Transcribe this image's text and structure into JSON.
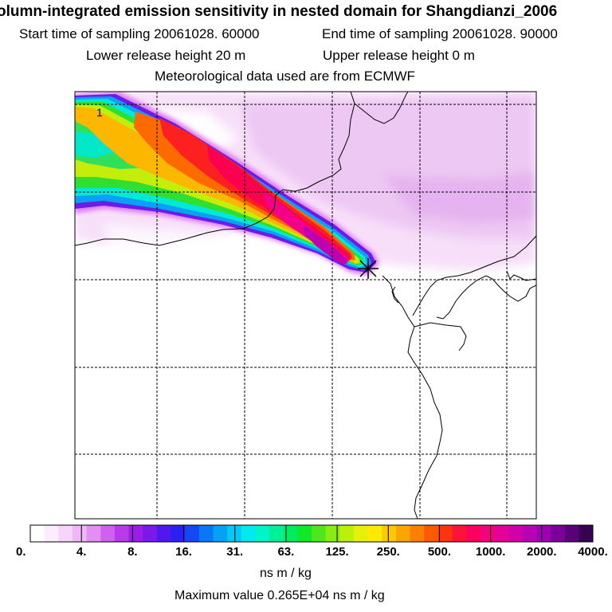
{
  "title": {
    "main": "olumn-integrated emission sensitivity in nested domain for Shangdianzi_2006",
    "start": "Start time of sampling 20061028. 60000",
    "end": "End time of sampling 20061028. 90000",
    "lower": "Lower release height   20 m",
    "upper": "Upper release height    0 m",
    "met": "Meteorological data used are from ECMWF"
  },
  "map": {
    "plot_label": "1",
    "receptor_marker": "receptor-cross-icon"
  },
  "colorbar": {
    "tick_labels": [
      "0.",
      "4.",
      "8.",
      "16.",
      "31.",
      "63.",
      "125.",
      "250.",
      "500.",
      "1000.",
      "2000.",
      "4000."
    ],
    "colors": [
      "#ffffff",
      "#fcecfd",
      "#f7d4fb",
      "#f0b6f8",
      "#e38ef3",
      "#d060ef",
      "#b83aea",
      "#9c1ee6",
      "#7a19e8",
      "#5018ec",
      "#2c20f0",
      "#1448f2",
      "#0a78f4",
      "#06a0f6",
      "#04c8f6",
      "#00eaf0",
      "#00f4c8",
      "#00f09a",
      "#00ec60",
      "#10e828",
      "#4ce81c",
      "#88ec14",
      "#bcf00c",
      "#e6f00a",
      "#fcea00",
      "#fcc800",
      "#fca400",
      "#fc8000",
      "#fc5a00",
      "#fc3410",
      "#fc1438",
      "#fc0060",
      "#f4007e",
      "#e40096",
      "#d000a8",
      "#b800b4",
      "#9c00b0",
      "#7c0098",
      "#5a0078",
      "#380050"
    ],
    "units": "ns m / kg"
  },
  "max_line": "Maximum value  0.265E+04 ns m / kg"
}
